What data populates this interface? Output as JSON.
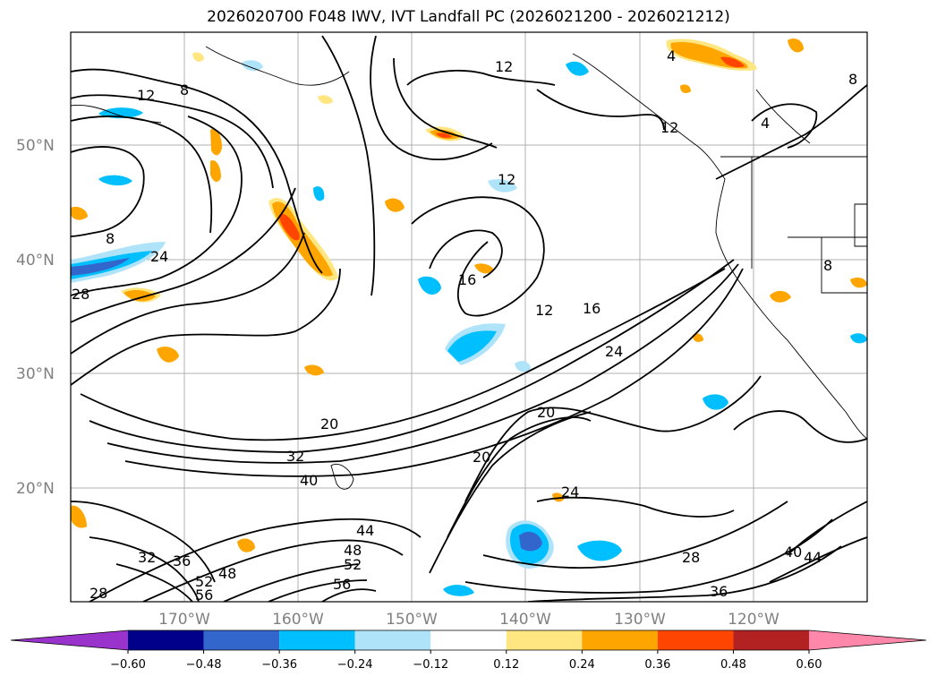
{
  "title": "2026020700 F048 IWV, IVT Landfall PC (2026021200 - 2026021212)",
  "lat_labels": [
    "50°N",
    "40°N",
    "30°N",
    "20°N"
  ],
  "lon_labels": [
    "170°W",
    "160°W",
    "150°W",
    "140°W",
    "130°W",
    "120°W"
  ],
  "contour_labels": [
    "12",
    "8",
    "4",
    "4",
    "8",
    "12",
    "12",
    "16",
    "12",
    "16",
    "24",
    "8",
    "24",
    "28",
    "20",
    "32",
    "40",
    "20",
    "20",
    "24",
    "28",
    "36",
    "40",
    "44",
    "44",
    "48",
    "52",
    "56",
    "52",
    "48",
    "56",
    "32",
    "36",
    "28",
    "12",
    "8"
  ],
  "colorbar": {
    "ticks": [
      "−0.60",
      "−0.48",
      "−0.36",
      "−0.24",
      "−0.12",
      "0.12",
      "0.24",
      "0.36",
      "0.48",
      "0.60"
    ],
    "bins": [
      {
        "lo": null,
        "hi": -0.6,
        "color": "#9933cc"
      },
      {
        "lo": -0.6,
        "hi": -0.48,
        "color": "#00008b"
      },
      {
        "lo": -0.48,
        "hi": -0.36,
        "color": "#3366cc"
      },
      {
        "lo": -0.36,
        "hi": -0.24,
        "color": "#00bfff"
      },
      {
        "lo": -0.24,
        "hi": -0.12,
        "color": "#aee3fa"
      },
      {
        "lo": -0.12,
        "hi": 0.12,
        "color": "#ffffff"
      },
      {
        "lo": 0.12,
        "hi": 0.24,
        "color": "#ffe680"
      },
      {
        "lo": 0.24,
        "hi": 0.36,
        "color": "#ffa500"
      },
      {
        "lo": 0.36,
        "hi": 0.48,
        "color": "#ff4500"
      },
      {
        "lo": 0.48,
        "hi": 0.6,
        "color": "#b22222"
      },
      {
        "lo": 0.6,
        "hi": null,
        "color": "#ff88aa"
      }
    ]
  }
}
